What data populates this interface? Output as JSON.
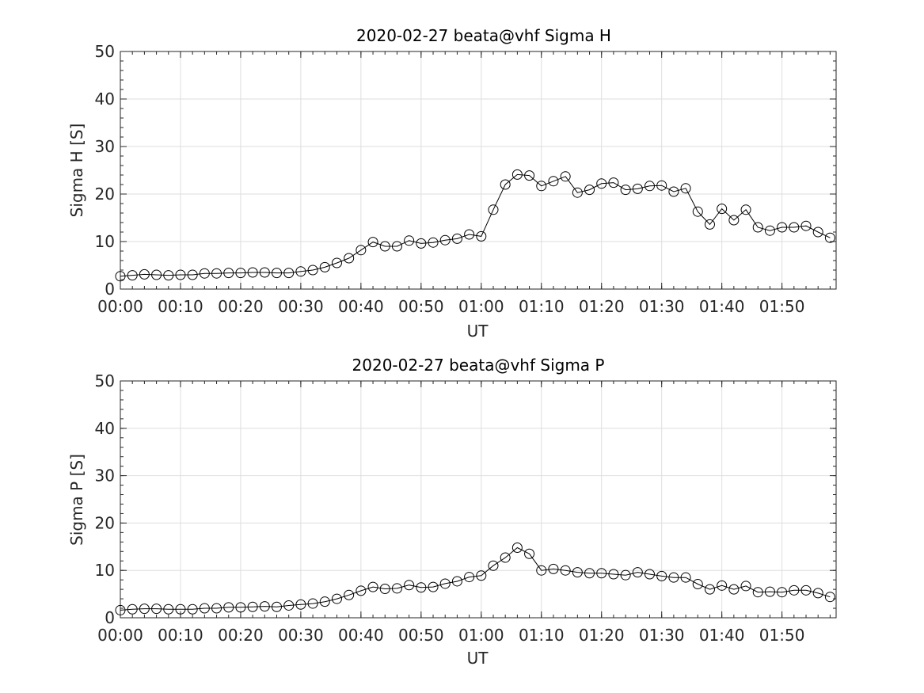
{
  "chart_data": [
    {
      "type": "line",
      "title": "2020-02-27  beata@vhf Sigma H",
      "xlabel": "UT",
      "ylabel": "Sigma H [S]",
      "x_unit": "minutes after 00:00 UT",
      "xlim": [
        0,
        119
      ],
      "ylim": [
        0,
        50
      ],
      "grid": true,
      "marker": "open-circle",
      "line_color": "#000000",
      "x_tick_values": [
        0,
        10,
        20,
        30,
        40,
        50,
        60,
        70,
        80,
        90,
        100,
        110
      ],
      "x_tick_labels": [
        "00:00",
        "00:10",
        "00:20",
        "00:30",
        "00:40",
        "00:50",
        "01:00",
        "01:10",
        "01:20",
        "01:30",
        "01:40",
        "01:50"
      ],
      "y_ticks": [
        0,
        10,
        20,
        30,
        40,
        50
      ],
      "x": [
        0,
        2,
        4,
        6,
        8,
        10,
        12,
        14,
        16,
        18,
        20,
        22,
        24,
        26,
        28,
        30,
        32,
        34,
        36,
        38,
        40,
        42,
        44,
        46,
        48,
        50,
        52,
        54,
        56,
        58,
        60,
        62,
        64,
        66,
        68,
        70,
        72,
        74,
        76,
        78,
        80,
        82,
        84,
        86,
        88,
        90,
        92,
        94,
        96,
        98,
        100,
        102,
        104,
        106,
        108,
        110,
        112,
        114,
        116,
        118
      ],
      "values": [
        2.7,
        2.9,
        3.1,
        3.0,
        2.9,
        3.0,
        3.0,
        3.3,
        3.3,
        3.4,
        3.4,
        3.5,
        3.5,
        3.4,
        3.4,
        3.7,
        4.0,
        4.6,
        5.5,
        6.5,
        8.2,
        9.9,
        9.0,
        9.0,
        10.2,
        9.6,
        9.8,
        10.3,
        10.6,
        11.5,
        11.1,
        16.7,
        22.0,
        24.1,
        23.9,
        21.7,
        22.7,
        23.7,
        20.3,
        20.9,
        22.2,
        22.4,
        20.9,
        21.1,
        21.7,
        21.8,
        20.5,
        21.2,
        16.3,
        13.6,
        16.9,
        14.5,
        16.7,
        13.0,
        12.3,
        13.0,
        13.0,
        13.3,
        12.0,
        10.8
      ]
    },
    {
      "type": "line",
      "title": "2020-02-27  beata@vhf Sigma P",
      "xlabel": "UT",
      "ylabel": "Sigma P [S]",
      "x_unit": "minutes after 00:00 UT",
      "xlim": [
        0,
        119
      ],
      "ylim": [
        0,
        50
      ],
      "grid": true,
      "marker": "open-circle",
      "line_color": "#000000",
      "x_tick_values": [
        0,
        10,
        20,
        30,
        40,
        50,
        60,
        70,
        80,
        90,
        100,
        110
      ],
      "x_tick_labels": [
        "00:00",
        "00:10",
        "00:20",
        "00:30",
        "00:40",
        "00:50",
        "01:00",
        "01:10",
        "01:20",
        "01:30",
        "01:40",
        "01:50"
      ],
      "y_ticks": [
        0,
        10,
        20,
        30,
        40,
        50
      ],
      "x": [
        0,
        2,
        4,
        6,
        8,
        10,
        12,
        14,
        16,
        18,
        20,
        22,
        24,
        26,
        28,
        30,
        32,
        34,
        36,
        38,
        40,
        42,
        44,
        46,
        48,
        50,
        52,
        54,
        56,
        58,
        60,
        62,
        64,
        66,
        68,
        70,
        72,
        74,
        76,
        78,
        80,
        82,
        84,
        86,
        88,
        90,
        92,
        94,
        96,
        98,
        100,
        102,
        104,
        106,
        108,
        110,
        112,
        114,
        116,
        118
      ],
      "values": [
        1.6,
        1.8,
        1.9,
        1.9,
        1.8,
        1.8,
        1.8,
        2.0,
        2.0,
        2.2,
        2.2,
        2.3,
        2.4,
        2.3,
        2.6,
        2.8,
        3.0,
        3.4,
        4.0,
        4.8,
        5.7,
        6.5,
        6.1,
        6.2,
        6.9,
        6.4,
        6.5,
        7.2,
        7.7,
        8.6,
        8.9,
        11.0,
        12.7,
        14.8,
        13.5,
        10.0,
        10.3,
        10.0,
        9.6,
        9.4,
        9.4,
        9.2,
        9.0,
        9.6,
        9.2,
        8.8,
        8.5,
        8.5,
        7.1,
        6.0,
        6.8,
        6.0,
        6.7,
        5.4,
        5.5,
        5.4,
        5.8,
        5.8,
        5.2,
        4.4
      ]
    }
  ]
}
